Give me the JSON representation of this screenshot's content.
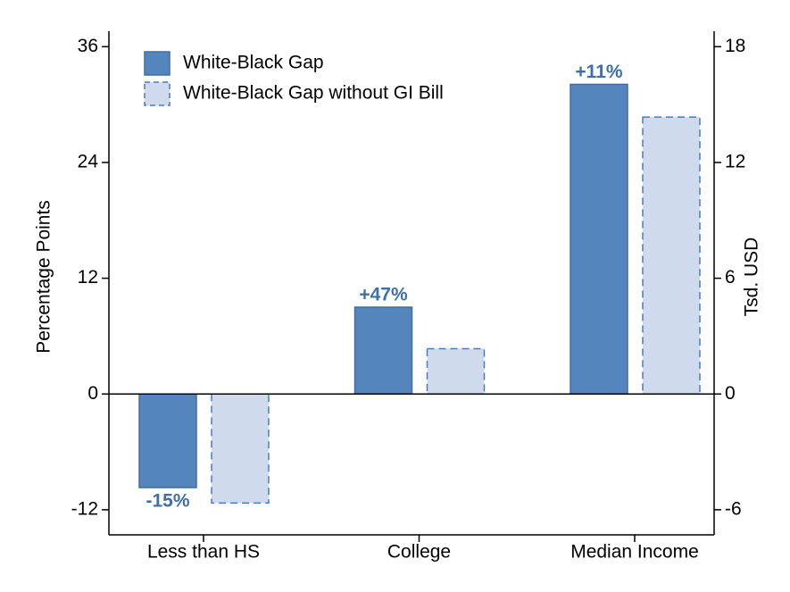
{
  "chart_data": {
    "type": "bar",
    "categories": [
      "Less than HS",
      "College",
      "Median Income"
    ],
    "series": [
      {
        "name": "White-Black Gap",
        "color": "#5585bd",
        "values": [
          -9.7,
          9.0,
          32.1
        ],
        "value_labels": [
          "-15%",
          "+47%",
          "+11%"
        ]
      },
      {
        "name": "White-Black Gap without GI Bill",
        "color": "#cfdbec",
        "values": [
          -11.3,
          4.7,
          28.7
        ]
      }
    ],
    "y_label": "Percentage Points",
    "y2_label": "Tsd. USD",
    "ylim": [
      -14.6,
      37.6
    ],
    "yticks": [
      -12,
      0,
      12,
      24,
      36
    ],
    "y2lim": [
      -7.3,
      18.8
    ],
    "y2ticks": [
      -6,
      0,
      6,
      12,
      18
    ]
  }
}
